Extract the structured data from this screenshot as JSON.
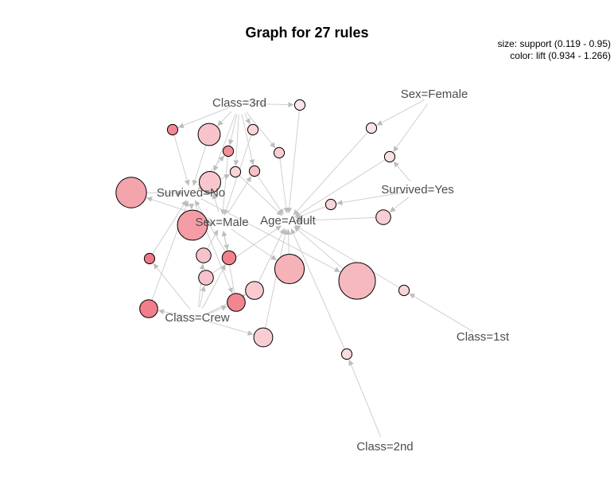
{
  "title": "Graph for 27 rules",
  "legend": {
    "size": "size: support (0.119 - 0.95)",
    "color": "color: lift (0.934 - 1.266)"
  },
  "colors": {
    "edge": "#cfcfcf",
    "arrow": "#bdbdbd",
    "label": "#4d4d4d",
    "lift_low": "#fbecef",
    "lift_high": "#f07884",
    "stroke": "#000000"
  },
  "lift_range": [
    0.934,
    1.266
  ],
  "support_range": [
    0.119,
    0.95
  ],
  "items": [
    {
      "id": "class3rd",
      "label": "Class=3rd"
    },
    {
      "id": "sexFemale",
      "label": "Sex=Female"
    },
    {
      "id": "survivedNo",
      "label": "Survived=No"
    },
    {
      "id": "survivedYes",
      "label": "Survived=Yes"
    },
    {
      "id": "sexMale",
      "label": "Sex=Male"
    },
    {
      "id": "ageAdult",
      "label": "Age=Adult"
    },
    {
      "id": "classCrew",
      "label": "Class=Crew"
    },
    {
      "id": "class1st",
      "label": "Class=1st"
    },
    {
      "id": "class2nd",
      "label": "Class=2nd"
    }
  ],
  "rules": [
    {
      "id": "r1",
      "support": 0.12,
      "lift": 0.95,
      "lhs": [
        "class3rd"
      ],
      "rhs": "ageAdult"
    },
    {
      "id": "r2",
      "support": 0.12,
      "lift": 1.22,
      "lhs": [
        "class3rd"
      ],
      "rhs": "survivedNo"
    },
    {
      "id": "r3",
      "support": 0.3,
      "lift": 1.05,
      "lhs": [
        "class3rd"
      ],
      "rhs": "survivedNo"
    },
    {
      "id": "r4",
      "support": 0.12,
      "lift": 1.0,
      "lhs": [
        "class3rd"
      ],
      "rhs": "sexMale"
    },
    {
      "id": "r5",
      "support": 0.12,
      "lift": 1.2,
      "lhs": [
        "class3rd",
        "survivedNo"
      ],
      "rhs": "sexMale"
    },
    {
      "id": "r6",
      "support": 0.12,
      "lift": 1.02,
      "lhs": [
        "class3rd"
      ],
      "rhs": "ageAdult"
    },
    {
      "id": "r7",
      "support": 0.28,
      "lift": 1.04,
      "lhs": [
        "class3rd",
        "sexMale"
      ],
      "rhs": "survivedNo"
    },
    {
      "id": "r8",
      "support": 0.12,
      "lift": 1.0,
      "lhs": [
        "class3rd",
        "survivedNo"
      ],
      "rhs": "ageAdult"
    },
    {
      "id": "r9",
      "support": 0.12,
      "lift": 1.06,
      "lhs": [
        "class3rd",
        "sexMale"
      ],
      "rhs": "ageAdult"
    },
    {
      "id": "r10",
      "support": 0.12,
      "lift": 0.96,
      "lhs": [
        "sexFemale"
      ],
      "rhs": "ageAdult"
    },
    {
      "id": "r11",
      "support": 0.12,
      "lift": 0.97,
      "lhs": [
        "sexFemale",
        "survivedYes"
      ],
      "rhs": "ageAdult"
    },
    {
      "id": "r12",
      "support": 0.12,
      "lift": 1.0,
      "lhs": [
        "survivedYes"
      ],
      "rhs": "ageAdult"
    },
    {
      "id": "r13",
      "support": 0.15,
      "lift": 1.02,
      "lhs": [
        "survivedYes"
      ],
      "rhs": "ageAdult"
    },
    {
      "id": "r14",
      "support": 0.62,
      "lift": 1.14,
      "lhs": [
        "sexMale"
      ],
      "rhs": "survivedNo"
    },
    {
      "id": "r15",
      "support": 0.6,
      "lift": 1.16,
      "lhs": [
        "survivedNo"
      ],
      "rhs": "sexMale"
    },
    {
      "id": "r16",
      "support": 0.12,
      "lift": 1.27,
      "lhs": [
        "classCrew"
      ],
      "rhs": "survivedNo"
    },
    {
      "id": "r17",
      "support": 0.15,
      "lift": 1.05,
      "lhs": [
        "classCrew"
      ],
      "rhs": "sexMale"
    },
    {
      "id": "r18",
      "support": 0.15,
      "lift": 1.05,
      "lhs": [
        "classCrew"
      ],
      "rhs": "ageAdult"
    },
    {
      "id": "r19",
      "support": 0.14,
      "lift": 1.24,
      "lhs": [
        "classCrew",
        "sexMale"
      ],
      "rhs": "survivedNo"
    },
    {
      "id": "r20",
      "support": 0.2,
      "lift": 1.03,
      "lhs": [
        "classCrew"
      ],
      "rhs": "ageAdult"
    },
    {
      "id": "r21",
      "support": 0.2,
      "lift": 1.23,
      "lhs": [
        "classCrew",
        "survivedNo"
      ],
      "rhs": "sexMale"
    },
    {
      "id": "r22",
      "support": 0.2,
      "lift": 1.25,
      "lhs": [
        "classCrew"
      ],
      "rhs": "survivedNo"
    },
    {
      "id": "r23",
      "support": 0.22,
      "lift": 1.02,
      "lhs": [
        "classCrew"
      ],
      "rhs": "ageAdult"
    },
    {
      "id": "r24",
      "support": 0.57,
      "lift": 1.1,
      "lhs": [
        "sexMale"
      ],
      "rhs": "ageAdult"
    },
    {
      "id": "r25",
      "support": 0.95,
      "lift": 1.08,
      "lhs": [
        "survivedNo"
      ],
      "rhs": "ageAdult"
    },
    {
      "id": "r26",
      "support": 0.12,
      "lift": 1.0,
      "lhs": [
        "class1st"
      ],
      "rhs": "ageAdult"
    },
    {
      "id": "r27",
      "support": 0.12,
      "lift": 0.98,
      "lhs": [
        "class2nd"
      ],
      "rhs": "ageAdult"
    }
  ]
}
